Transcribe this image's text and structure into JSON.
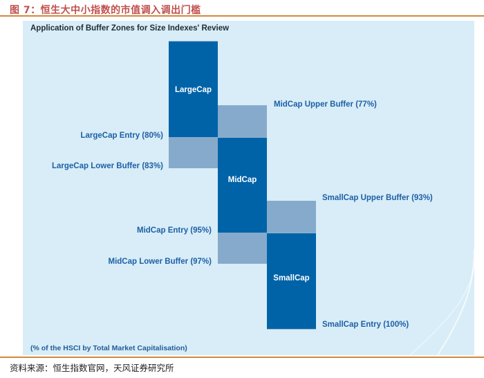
{
  "figure": {
    "title": "图 7：恒生大中小指数的市值调入调出门槛",
    "source": "资料来源：恒生指数官网，天风证券研究所"
  },
  "diagram": {
    "title": "Application of Buffer Zones for Size Indexes' Review",
    "footnote": "(% of the HSCI by Total Market Capitalisation)",
    "segments": {
      "largecap": "LargeCap",
      "midcap": "MidCap",
      "smallcap": "SmallCap"
    },
    "labels": {
      "largecap_entry": "LargeCap Entry (80%)",
      "largecap_lower_buffer": "LargeCap Lower Buffer (83%)",
      "midcap_upper_buffer": "MidCap Upper Buffer (77%)",
      "midcap_entry": "MidCap Entry (95%)",
      "midcap_lower_buffer": "MidCap Lower Buffer (97%)",
      "smallcap_upper_buffer": "SmallCap Upper Buffer (93%)",
      "smallcap_entry": "SmallCap Entry (100%)"
    },
    "colors": {
      "core": "#0063a8",
      "buffer": "#86aacb",
      "background": "#d8edf7",
      "label": "#1e5fa6",
      "accent_rule": "#d4873a",
      "title_red": "#c0504d"
    }
  }
}
